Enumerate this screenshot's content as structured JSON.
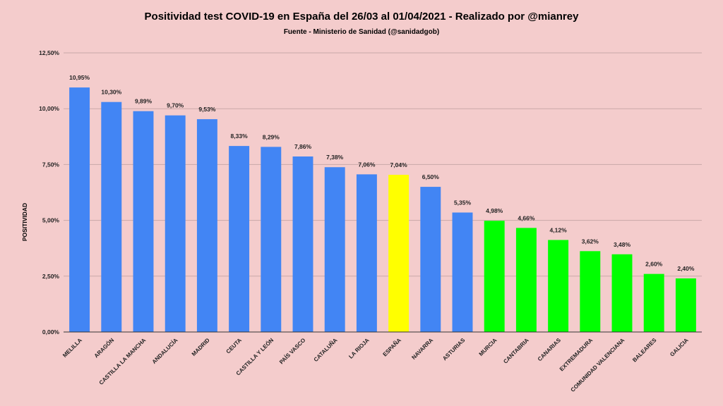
{
  "chart_data": {
    "type": "bar",
    "title": "Positividad test COVID-19 en España del 26/03 al 01/04/2021 - Realizado por @mianrey",
    "subtitle": "Fuente - Ministerio de Sanidad (@sanidadgob)",
    "xlabel": "",
    "ylabel": "POSITIVIDAD",
    "ylim": [
      0,
      12.5
    ],
    "yticks": [
      "0,00%",
      "2,50%",
      "5,00%",
      "7,50%",
      "10,00%",
      "12,50%"
    ],
    "grid": true,
    "categories": [
      "MELILLA",
      "ARAGÓN",
      "CASTILLA LA MANCHA",
      "ANDALUCÍA",
      "MADRID",
      "CEUTA",
      "CASTILLA Y LEÓN",
      "PAÍS VASCO",
      "CATALUÑA",
      "LA RIOJA",
      "ESPAÑA",
      "NAVARRA",
      "ASTURIAS",
      "MURCIA",
      "CANTABRIA",
      "CANARIAS",
      "EXTREMADURA",
      "COMUNIDAD VALENCIANA",
      "BALEARES",
      "GALICIA"
    ],
    "values": [
      10.95,
      10.3,
      9.89,
      9.7,
      9.53,
      8.33,
      8.29,
      7.86,
      7.38,
      7.06,
      7.04,
      6.5,
      5.35,
      4.98,
      4.66,
      4.12,
      3.62,
      3.48,
      2.6,
      2.4
    ],
    "value_labels": [
      "10,95%",
      "10,30%",
      "9,89%",
      "9,70%",
      "9,53%",
      "8,33%",
      "8,29%",
      "7,86%",
      "7,38%",
      "7,06%",
      "7,04%",
      "6,50%",
      "5,35%",
      "4,98%",
      "4,66%",
      "4,12%",
      "3,62%",
      "3,48%",
      "2,60%",
      "2,40%"
    ],
    "bar_colors": [
      "#4285f4",
      "#4285f4",
      "#4285f4",
      "#4285f4",
      "#4285f4",
      "#4285f4",
      "#4285f4",
      "#4285f4",
      "#4285f4",
      "#4285f4",
      "#ffff00",
      "#4285f4",
      "#4285f4",
      "#00ff00",
      "#00ff00",
      "#00ff00",
      "#00ff00",
      "#00ff00",
      "#00ff00",
      "#00ff00"
    ],
    "colors": {
      "background": "#f4cccc",
      "grid": "#c9a8a8",
      "axis": "#333333"
    }
  }
}
